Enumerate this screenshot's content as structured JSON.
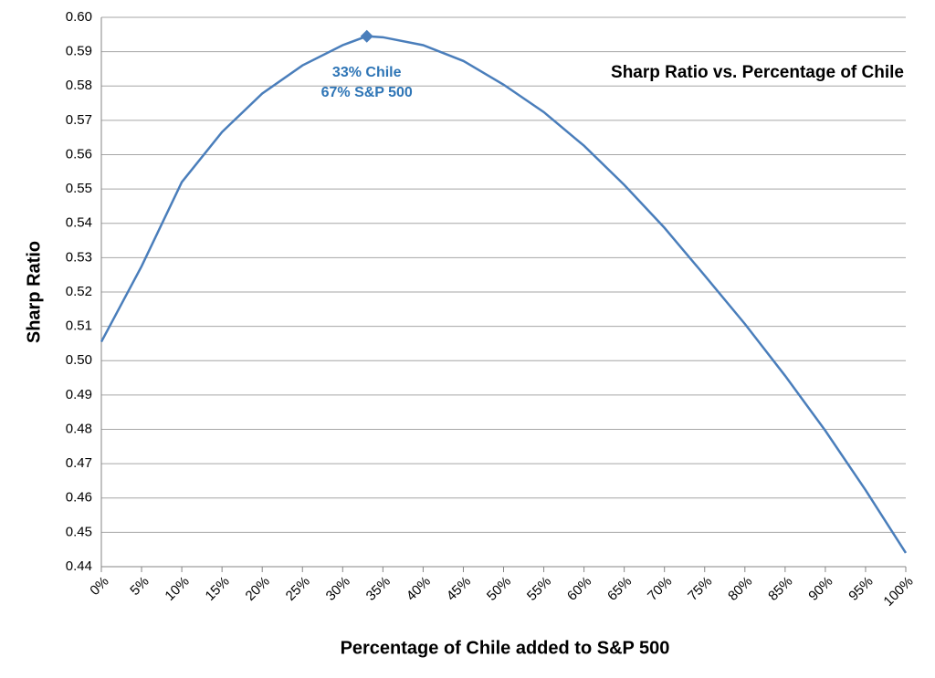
{
  "chart_data": {
    "type": "line",
    "title": "Sharp Ratio vs. Percentage of Chile",
    "xlabel": "Percentage of Chile added to S&P 500",
    "ylabel": "Sharp Ratio",
    "x": [
      0,
      5,
      10,
      15,
      20,
      25,
      30,
      33,
      35,
      40,
      45,
      50,
      55,
      60,
      65,
      70,
      75,
      80,
      85,
      90,
      95,
      100
    ],
    "series": [
      {
        "name": "Sharp Ratio",
        "color": "#4a7ebb",
        "values": [
          0.5055,
          0.5275,
          0.552,
          0.5666,
          0.5778,
          0.586,
          0.5919,
          0.5945,
          0.5942,
          0.5919,
          0.5873,
          0.5804,
          0.5724,
          0.5626,
          0.5512,
          0.5387,
          0.5248,
          0.5107,
          0.4956,
          0.4796,
          0.4623,
          0.444
        ]
      }
    ],
    "annotation": {
      "x": 33,
      "y": 0.5945,
      "lines": [
        "33% Chile",
        "67% S&P 500"
      ],
      "color": "#2e75b6"
    },
    "xlim": [
      0,
      100
    ],
    "xticks": [
      {
        "value": 0,
        "label": "0%"
      },
      {
        "value": 5,
        "label": "5%"
      },
      {
        "value": 10,
        "label": "10%"
      },
      {
        "value": 15,
        "label": "15%"
      },
      {
        "value": 20,
        "label": "20%"
      },
      {
        "value": 25,
        "label": "25%"
      },
      {
        "value": 30,
        "label": "30%"
      },
      {
        "value": 35,
        "label": "35%"
      },
      {
        "value": 40,
        "label": "40%"
      },
      {
        "value": 45,
        "label": "45%"
      },
      {
        "value": 50,
        "label": "50%"
      },
      {
        "value": 55,
        "label": "55%"
      },
      {
        "value": 60,
        "label": "60%"
      },
      {
        "value": 65,
        "label": "65%"
      },
      {
        "value": 70,
        "label": "70%"
      },
      {
        "value": 75,
        "label": "75%"
      },
      {
        "value": 80,
        "label": "80%"
      },
      {
        "value": 85,
        "label": "85%"
      },
      {
        "value": 90,
        "label": "90%"
      },
      {
        "value": 95,
        "label": "95%"
      },
      {
        "value": 100,
        "label": "100%"
      }
    ],
    "ylim": [
      0.44,
      0.6
    ],
    "yticks": [
      {
        "value": 0.44,
        "label": "0.44"
      },
      {
        "value": 0.45,
        "label": "0.45"
      },
      {
        "value": 0.46,
        "label": "0.46"
      },
      {
        "value": 0.47,
        "label": "0.47"
      },
      {
        "value": 0.48,
        "label": "0.48"
      },
      {
        "value": 0.49,
        "label": "0.49"
      },
      {
        "value": 0.5,
        "label": "0.50"
      },
      {
        "value": 0.51,
        "label": "0.51"
      },
      {
        "value": 0.52,
        "label": "0.52"
      },
      {
        "value": 0.53,
        "label": "0.53"
      },
      {
        "value": 0.54,
        "label": "0.54"
      },
      {
        "value": 0.55,
        "label": "0.55"
      },
      {
        "value": 0.56,
        "label": "0.56"
      },
      {
        "value": 0.57,
        "label": "0.57"
      },
      {
        "value": 0.58,
        "label": "0.58"
      },
      {
        "value": 0.59,
        "label": "0.59"
      },
      {
        "value": 0.6,
        "label": "0.60"
      }
    ],
    "grid": true
  }
}
